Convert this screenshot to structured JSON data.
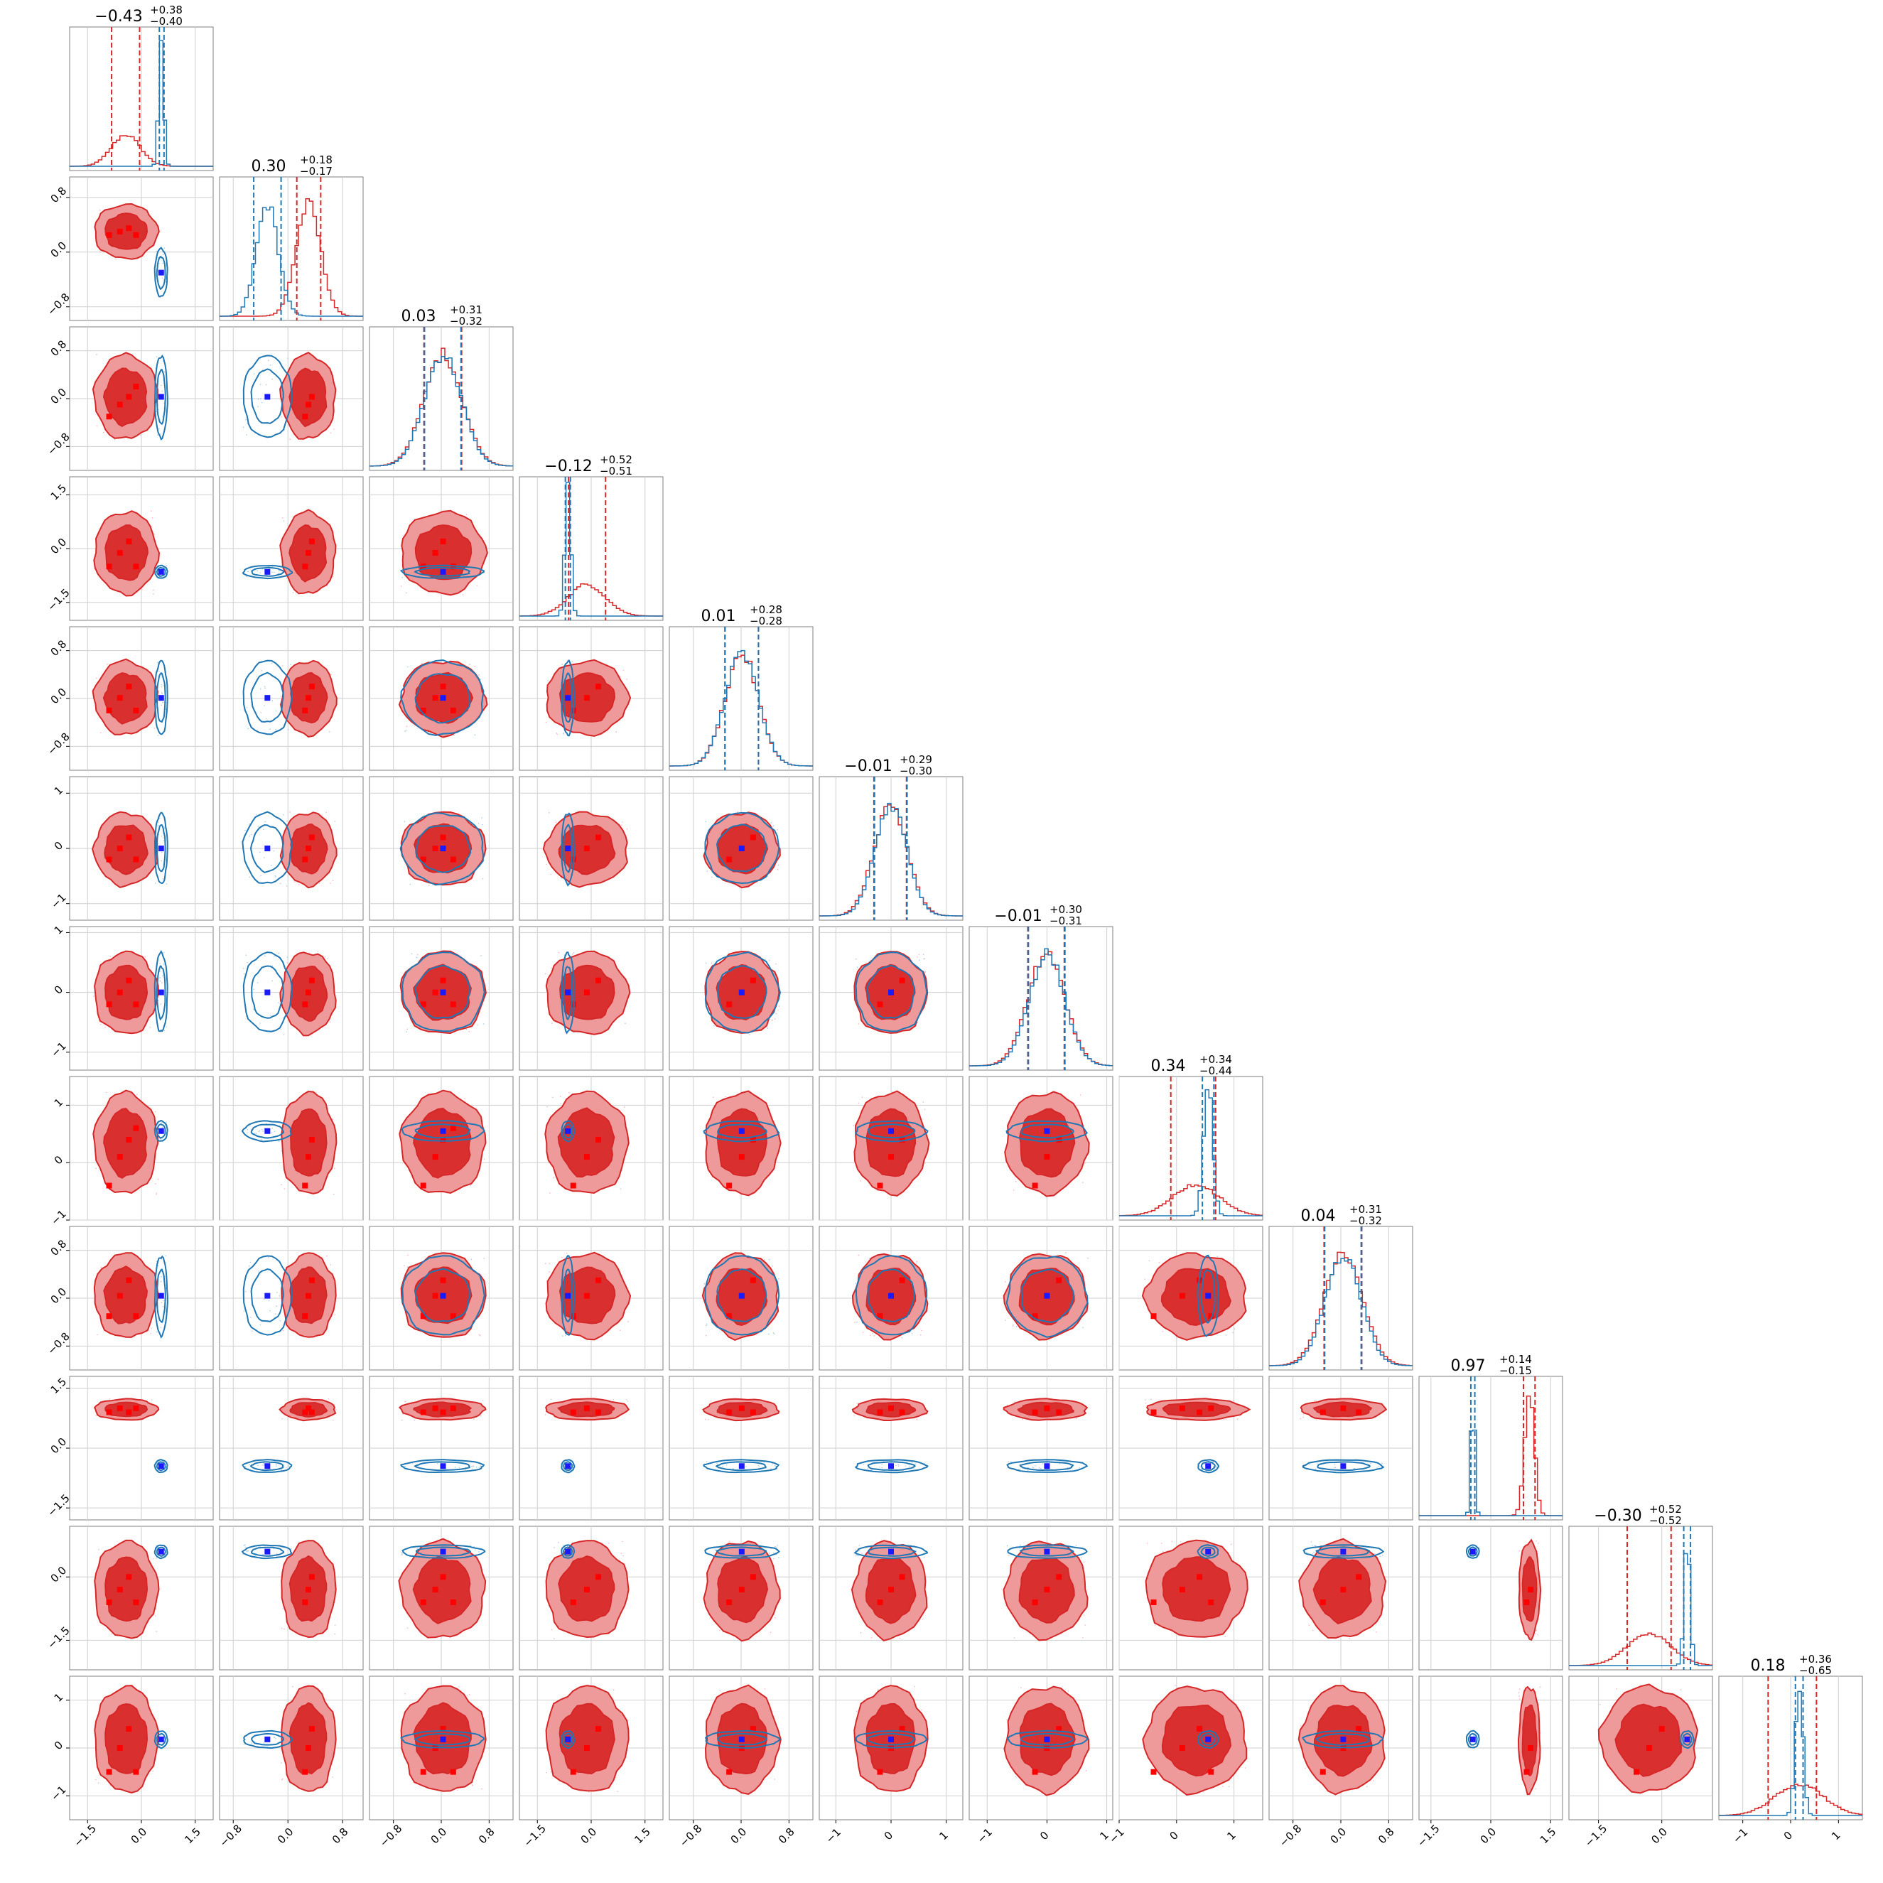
{
  "chart_data": {
    "type": "corner",
    "n_params": 12,
    "colors": {
      "red_series": "#d62728",
      "red_fill_outer": "#ef9a9a",
      "red_fill_inner": "#d9302f",
      "blue_series": "#1f77b4",
      "blue_marker": "#1a1aff",
      "red_marker": "#ff0000"
    },
    "grid": true,
    "params": [
      {
        "title_median": "−0.43",
        "title_plus": "+0.38",
        "title_minus": "−0.40",
        "range": [
          -2.0,
          2.0
        ],
        "ticks": [
          -1.5,
          0.0,
          1.5
        ],
        "tick_labels": [
          "−1.5",
          "0.0",
          "1.5"
        ],
        "red": {
          "mu": -0.43,
          "sd": 0.4
        },
        "blue": {
          "mu": 0.55,
          "sd": 0.07
        },
        "red_dash": [
          -0.83,
          -0.05
        ],
        "blue_dash": [
          0.5,
          0.63
        ],
        "red_markers": [
          -0.9,
          -0.6,
          -0.35,
          -0.15
        ],
        "blue_marker": 0.55
      },
      {
        "title_median": "0.30",
        "title_plus": "+0.18",
        "title_minus": "−0.17",
        "range": [
          -1.0,
          1.1
        ],
        "ticks": [
          -0.8,
          0.0,
          0.8
        ],
        "tick_labels": [
          "−0.8",
          "0.0",
          "0.8"
        ],
        "red": {
          "mu": 0.3,
          "sd": 0.18
        },
        "blue": {
          "mu": -0.3,
          "sd": 0.16
        },
        "red_dash": [
          0.13,
          0.48
        ],
        "blue_dash": [
          -0.5,
          -0.1
        ],
        "red_markers": [
          0.25,
          0.3,
          0.35
        ],
        "blue_marker": -0.3
      },
      {
        "title_median": "0.03",
        "title_plus": "+0.31",
        "title_minus": "−0.32",
        "range": [
          -1.2,
          1.2
        ],
        "ticks": [
          -0.8,
          0.0,
          0.8
        ],
        "tick_labels": [
          "−0.8",
          "0.0",
          "0.8"
        ],
        "red": {
          "mu": 0.03,
          "sd": 0.32
        },
        "blue": {
          "mu": 0.03,
          "sd": 0.31
        },
        "red_dash": [
          -0.29,
          0.34
        ],
        "blue_dash": [
          -0.28,
          0.33
        ],
        "red_markers": [
          -0.3,
          -0.1,
          0.03,
          0.2
        ],
        "blue_marker": 0.03
      },
      {
        "title_median": "−0.12",
        "title_plus": "+0.52",
        "title_minus": "−0.51",
        "range": [
          -2.0,
          2.0
        ],
        "ticks": [
          -1.5,
          0.0,
          1.5
        ],
        "tick_labels": [
          "−1.5",
          "0.0",
          "1.5"
        ],
        "red": {
          "mu": -0.12,
          "sd": 0.52
        },
        "blue": {
          "mu": -0.65,
          "sd": 0.08
        },
        "red_dash": [
          -0.63,
          0.4
        ],
        "blue_dash": [
          -0.72,
          -0.58
        ],
        "red_markers": [
          -0.5,
          -0.12,
          0.2
        ],
        "blue_marker": -0.65
      },
      {
        "title_median": "0.01",
        "title_plus": "+0.28",
        "title_minus": "−0.28",
        "range": [
          -1.2,
          1.2
        ],
        "ticks": [
          -0.8,
          0.0,
          0.8
        ],
        "tick_labels": [
          "−0.8",
          "0.0",
          "0.8"
        ],
        "red": {
          "mu": 0.01,
          "sd": 0.28
        },
        "blue": {
          "mu": 0.01,
          "sd": 0.28
        },
        "red_dash": [
          -0.27,
          0.29
        ],
        "blue_dash": [
          -0.27,
          0.29
        ],
        "red_markers": [
          -0.2,
          0.01,
          0.2
        ],
        "blue_marker": 0.01
      },
      {
        "title_median": "−0.01",
        "title_plus": "+0.29",
        "title_minus": "−0.30",
        "range": [
          -1.3,
          1.3
        ],
        "ticks": [
          -1.0,
          0.0,
          1.0
        ],
        "tick_labels": [
          "−1",
          "0",
          "1"
        ],
        "red": {
          "mu": -0.01,
          "sd": 0.3
        },
        "blue": {
          "mu": 0.0,
          "sd": 0.29
        },
        "red_dash": [
          -0.31,
          0.28
        ],
        "blue_dash": [
          -0.3,
          0.29
        ],
        "red_markers": [
          -0.2,
          0.0,
          0.2
        ],
        "blue_marker": 0.0
      },
      {
        "title_median": "−0.01",
        "title_plus": "+0.30",
        "title_minus": "−0.31",
        "range": [
          -1.3,
          1.1
        ],
        "ticks": [
          -1.0,
          0.0,
          1.0
        ],
        "tick_labels": [
          "−1",
          "0",
          "1"
        ],
        "red": {
          "mu": -0.01,
          "sd": 0.31
        },
        "blue": {
          "mu": 0.0,
          "sd": 0.3
        },
        "red_dash": [
          -0.32,
          0.29
        ],
        "blue_dash": [
          -0.31,
          0.3
        ],
        "red_markers": [
          -0.2,
          0.0,
          0.2
        ],
        "blue_marker": 0.0
      },
      {
        "title_median": "0.34",
        "title_plus": "+0.34",
        "title_minus": "−0.44",
        "range": [
          -1.0,
          1.5
        ],
        "ticks": [
          -1.0,
          0.0,
          1.0
        ],
        "tick_labels": [
          "−1",
          "0",
          "1"
        ],
        "red": {
          "mu": 0.34,
          "sd": 0.4
        },
        "blue": {
          "mu": 0.55,
          "sd": 0.08
        },
        "red_dash": [
          -0.1,
          0.68
        ],
        "blue_dash": [
          0.45,
          0.65
        ],
        "red_markers": [
          -0.4,
          0.1,
          0.4,
          0.6
        ],
        "blue_marker": 0.55
      },
      {
        "title_median": "0.04",
        "title_plus": "+0.31",
        "title_minus": "−0.32",
        "range": [
          -1.2,
          1.2
        ],
        "ticks": [
          -0.8,
          0.0,
          0.8
        ],
        "tick_labels": [
          "−0.8",
          "0.0",
          "0.8"
        ],
        "red": {
          "mu": 0.04,
          "sd": 0.32
        },
        "blue": {
          "mu": 0.04,
          "sd": 0.3
        },
        "red_dash": [
          -0.28,
          0.35
        ],
        "blue_dash": [
          -0.27,
          0.34
        ],
        "red_markers": [
          -0.3,
          0.04,
          0.3
        ],
        "blue_marker": 0.04
      },
      {
        "title_median": "0.97",
        "title_plus": "+0.14",
        "title_minus": "−0.15",
        "range": [
          -1.8,
          1.8
        ],
        "ticks": [
          -1.5,
          0.0,
          1.5
        ],
        "tick_labels": [
          "−1.5",
          "0.0",
          "1.5"
        ],
        "red": {
          "mu": 0.97,
          "sd": 0.12
        },
        "blue": {
          "mu": -0.45,
          "sd": 0.05
        },
        "red_dash": [
          0.82,
          1.11
        ],
        "blue_dash": [
          -0.5,
          -0.4
        ],
        "red_markers": [
          0.9,
          1.0
        ],
        "blue_marker": -0.45
      },
      {
        "title_median": "−0.30",
        "title_plus": "+0.52",
        "title_minus": "−0.52",
        "range": [
          -2.2,
          1.2
        ],
        "ticks": [
          -1.5,
          0.0
        ],
        "tick_labels": [
          "−1.5",
          "0.0"
        ],
        "red": {
          "mu": -0.3,
          "sd": 0.52
        },
        "blue": {
          "mu": 0.6,
          "sd": 0.07
        },
        "red_dash": [
          -0.82,
          0.22
        ],
        "blue_dash": [
          0.52,
          0.68
        ],
        "red_markers": [
          -0.6,
          -0.3,
          0.0
        ],
        "blue_marker": 0.6
      },
      {
        "title_median": "0.18",
        "title_plus": "+0.36",
        "title_minus": "−0.65",
        "range": [
          -1.5,
          1.5
        ],
        "ticks": [
          -1.0,
          0.0,
          1.0
        ],
        "tick_labels": [
          "−1",
          "0",
          "1"
        ],
        "red": {
          "mu": 0.18,
          "sd": 0.5
        },
        "blue": {
          "mu": 0.18,
          "sd": 0.08
        },
        "red_dash": [
          -0.47,
          0.54
        ],
        "blue_dash": [
          0.1,
          0.26
        ],
        "red_markers": [
          -0.5,
          0.0,
          0.4
        ],
        "blue_marker": 0.18
      }
    ]
  }
}
